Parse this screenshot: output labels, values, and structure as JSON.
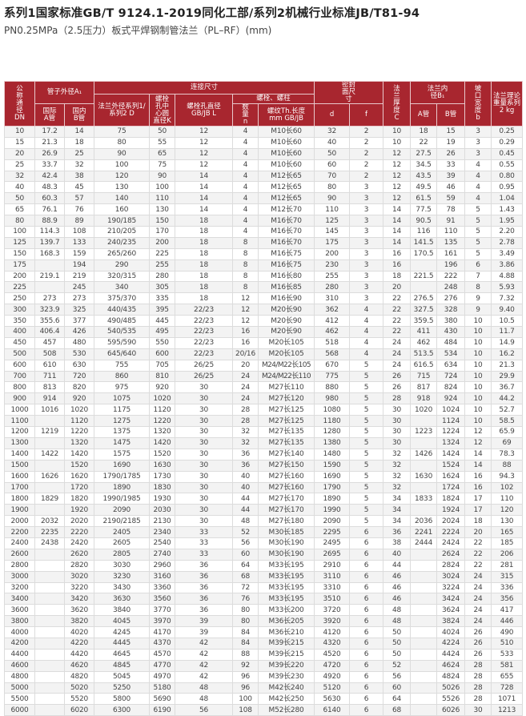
{
  "title": "系列1国家标准GB/T 9124.1-2019同化工部/系列2机械行业标准JB/T81-94",
  "subtitle": "PN0.25MPa（2.5压力）板式平焊钢制管法兰（PL–RF）(mm)",
  "colors": {
    "header_bg": "#a8262f",
    "header_text": "#ffffff",
    "row_alt": "#f3f3f3"
  },
  "header": {
    "dn": "公称通径DN",
    "pipe_od": "管子外径A₁",
    "pipe_a": "国际A管",
    "pipe_b": "国内B管",
    "connection": "连接尺寸",
    "flange_od": "法兰外径系列1/系列2 D",
    "bolt_circle": "螺栓孔中心圆直径K",
    "bolt_hole": "螺栓孔直径GB/JB L",
    "bolts": "螺栓、螺柱",
    "bolt_count": "数量n",
    "thread": "螺纹Th.长度mm GB/JB",
    "seal": "密封面尺寸",
    "seal_d": "d",
    "seal_f": "f",
    "thickness": "法兰厚度C",
    "bore": "法兰内径B₁",
    "bore_a": "A管",
    "bore_b": "B管",
    "bevel": "坡口宽度b",
    "weight": "法兰理论重量系列2 kg"
  },
  "rows": [
    [
      "10",
      "17.2",
      "14",
      "75",
      "50",
      "12",
      "4",
      "M10长60",
      "32",
      "2",
      "10",
      "18",
      "15",
      "3",
      "0.25"
    ],
    [
      "15",
      "21.3",
      "18",
      "80",
      "55",
      "12",
      "4",
      "M10长60",
      "40",
      "2",
      "10",
      "22",
      "19",
      "3",
      "0.29"
    ],
    [
      "20",
      "26.9",
      "25",
      "90",
      "65",
      "12",
      "4",
      "M10长60",
      "50",
      "2",
      "12",
      "27.5",
      "26",
      "3",
      "0.45"
    ],
    [
      "25",
      "33.7",
      "32",
      "100",
      "75",
      "12",
      "4",
      "M10长60",
      "60",
      "2",
      "12",
      "34.5",
      "33",
      "4",
      "0.55"
    ],
    [
      "32",
      "42.4",
      "38",
      "120",
      "90",
      "14",
      "4",
      "M12长65",
      "70",
      "2",
      "12",
      "43.5",
      "39",
      "4",
      "0.80"
    ],
    [
      "40",
      "48.3",
      "45",
      "130",
      "100",
      "14",
      "4",
      "M12长65",
      "80",
      "3",
      "12",
      "49.5",
      "46",
      "4",
      "0.95"
    ],
    [
      "50",
      "60.3",
      "57",
      "140",
      "110",
      "14",
      "4",
      "M12长65",
      "90",
      "3",
      "12",
      "61.5",
      "59",
      "4",
      "1.04"
    ],
    [
      "65",
      "76.1",
      "76",
      "160",
      "130",
      "14",
      "4",
      "M12长70",
      "110",
      "3",
      "14",
      "77.5",
      "78",
      "5",
      "1.43"
    ],
    [
      "80",
      "88.9",
      "89",
      "190/185",
      "150",
      "18",
      "4",
      "M16长70",
      "125",
      "3",
      "14",
      "90.5",
      "91",
      "5",
      "1.95"
    ],
    [
      "100",
      "114.3",
      "108",
      "210/205",
      "170",
      "18",
      "4",
      "M16长70",
      "145",
      "3",
      "14",
      "116",
      "110",
      "5",
      "2.20"
    ],
    [
      "125",
      "139.7",
      "133",
      "240/235",
      "200",
      "18",
      "8",
      "M16长70",
      "175",
      "3",
      "14",
      "141.5",
      "135",
      "5",
      "2.78"
    ],
    [
      "150",
      "168.3",
      "159",
      "265/260",
      "225",
      "18",
      "8",
      "M16长75",
      "200",
      "3",
      "16",
      "170.5",
      "161",
      "5",
      "3.49"
    ],
    [
      "175",
      "",
      "194",
      "290",
      "255",
      "18",
      "8",
      "M16长75",
      "230",
      "3",
      "16",
      "",
      "196",
      "6",
      "3.86"
    ],
    [
      "200",
      "219.1",
      "219",
      "320/315",
      "280",
      "18",
      "8",
      "M16长80",
      "255",
      "3",
      "18",
      "221.5",
      "222",
      "7",
      "4.88"
    ],
    [
      "225",
      "",
      "245",
      "340",
      "305",
      "18",
      "8",
      "M16长85",
      "280",
      "3",
      "20",
      "",
      "248",
      "8",
      "5.93"
    ],
    [
      "250",
      "273",
      "273",
      "375/370",
      "335",
      "18",
      "12",
      "M16长90",
      "310",
      "3",
      "22",
      "276.5",
      "276",
      "9",
      "7.32"
    ],
    [
      "300",
      "323.9",
      "325",
      "440/435",
      "395",
      "22/23",
      "12",
      "M20长90",
      "362",
      "4",
      "22",
      "327.5",
      "328",
      "9",
      "9.40"
    ],
    [
      "350",
      "355.6",
      "377",
      "490/485",
      "445",
      "22/23",
      "12",
      "M20长90",
      "412",
      "4",
      "22",
      "359.5",
      "380",
      "10",
      "10.5"
    ],
    [
      "400",
      "406.4",
      "426",
      "540/535",
      "495",
      "22/23",
      "16",
      "M20长90",
      "462",
      "4",
      "22",
      "411",
      "430",
      "10",
      "11.7"
    ],
    [
      "450",
      "457",
      "480",
      "595/590",
      "550",
      "22/23",
      "16",
      "M20长105",
      "518",
      "4",
      "24",
      "462",
      "484",
      "10",
      "14.9"
    ],
    [
      "500",
      "508",
      "530",
      "645/640",
      "600",
      "22/23",
      "20/16",
      "M20长105",
      "568",
      "4",
      "24",
      "513.5",
      "534",
      "10",
      "16.2"
    ],
    [
      "600",
      "610",
      "630",
      "755",
      "705",
      "26/25",
      "20",
      "M24/M22长105",
      "670",
      "5",
      "24",
      "616.5",
      "634",
      "10",
      "21.3"
    ],
    [
      "700",
      "711",
      "720",
      "860",
      "810",
      "26/25",
      "24",
      "M24/M22长110",
      "775",
      "5",
      "26",
      "715",
      "724",
      "10",
      "29.9"
    ],
    [
      "800",
      "813",
      "820",
      "975",
      "920",
      "30",
      "24",
      "M27长110",
      "880",
      "5",
      "26",
      "817",
      "824",
      "10",
      "36.7"
    ],
    [
      "900",
      "914",
      "920",
      "1075",
      "1020",
      "30",
      "24",
      "M27长120",
      "980",
      "5",
      "28",
      "918",
      "924",
      "10",
      "44.2"
    ],
    [
      "1000",
      "1016",
      "1020",
      "1175",
      "1120",
      "30",
      "28",
      "M27长125",
      "1080",
      "5",
      "30",
      "1020",
      "1024",
      "10",
      "52.7"
    ],
    [
      "1100",
      "",
      "1120",
      "1275",
      "1220",
      "30",
      "28",
      "M27长125",
      "1180",
      "5",
      "30",
      "",
      "1124",
      "10",
      "58.5"
    ],
    [
      "1200",
      "1219",
      "1220",
      "1375",
      "1320",
      "30",
      "32",
      "M27长135",
      "1280",
      "5",
      "30",
      "1223",
      "1224",
      "12",
      "65.9"
    ],
    [
      "1300",
      "",
      "1320",
      "1475",
      "1420",
      "30",
      "32",
      "M27长135",
      "1380",
      "5",
      "30",
      "",
      "1324",
      "12",
      "69"
    ],
    [
      "1400",
      "1422",
      "1420",
      "1575",
      "1520",
      "30",
      "36",
      "M27长140",
      "1480",
      "5",
      "32",
      "1426",
      "1424",
      "14",
      "78.3"
    ],
    [
      "1500",
      "",
      "1520",
      "1690",
      "1630",
      "30",
      "36",
      "M27长150",
      "1590",
      "5",
      "32",
      "",
      "1524",
      "14",
      "88"
    ],
    [
      "1600",
      "1626",
      "1620",
      "1790/1785",
      "1730",
      "30",
      "40",
      "M27长160",
      "1690",
      "5",
      "32",
      "1630",
      "1624",
      "16",
      "94.3"
    ],
    [
      "1700",
      "",
      "1720",
      "1890",
      "1830",
      "30",
      "40",
      "M27长160",
      "1790",
      "5",
      "32",
      "",
      "1724",
      "16",
      "102"
    ],
    [
      "1800",
      "1829",
      "1820",
      "1990/1985",
      "1930",
      "30",
      "44",
      "M27长170",
      "1890",
      "5",
      "34",
      "1833",
      "1824",
      "17",
      "110"
    ],
    [
      "1900",
      "",
      "1920",
      "2090",
      "2030",
      "30",
      "44",
      "M27长170",
      "1990",
      "5",
      "34",
      "",
      "1924",
      "17",
      "120"
    ],
    [
      "2000",
      "2032",
      "2020",
      "2190/2185",
      "2130",
      "30",
      "48",
      "M27长180",
      "2090",
      "5",
      "34",
      "2036",
      "2024",
      "18",
      "130"
    ],
    [
      "2200",
      "2235",
      "2220",
      "2405",
      "2340",
      "33",
      "52",
      "M30长185",
      "2295",
      "6",
      "36",
      "2241",
      "2224",
      "20",
      "165"
    ],
    [
      "2400",
      "2438",
      "2420",
      "2605",
      "2540",
      "33",
      "56",
      "M30长190",
      "2495",
      "6",
      "38",
      "2444",
      "2424",
      "22",
      "185"
    ],
    [
      "2600",
      "",
      "2620",
      "2805",
      "2740",
      "33",
      "60",
      "M30长190",
      "2695",
      "6",
      "40",
      "",
      "2624",
      "22",
      "206"
    ],
    [
      "2800",
      "",
      "2820",
      "3030",
      "2960",
      "36",
      "64",
      "M33长195",
      "2910",
      "6",
      "44",
      "",
      "2824",
      "22",
      "281"
    ],
    [
      "3000",
      "",
      "3020",
      "3230",
      "3160",
      "36",
      "68",
      "M33长195",
      "3110",
      "6",
      "46",
      "",
      "3024",
      "24",
      "315"
    ],
    [
      "3200",
      "",
      "3220",
      "3430",
      "3360",
      "36",
      "72",
      "M33长195",
      "3310",
      "6",
      "46",
      "",
      "3224",
      "24",
      "336"
    ],
    [
      "3400",
      "",
      "3420",
      "3630",
      "3560",
      "36",
      "76",
      "M33长195",
      "3510",
      "6",
      "46",
      "",
      "3424",
      "24",
      "356"
    ],
    [
      "3600",
      "",
      "3620",
      "3840",
      "3770",
      "36",
      "80",
      "M33长200",
      "3720",
      "6",
      "48",
      "",
      "3624",
      "24",
      "417"
    ],
    [
      "3800",
      "",
      "3820",
      "4045",
      "3970",
      "39",
      "80",
      "M36长205",
      "3920",
      "6",
      "48",
      "",
      "3824",
      "24",
      "446"
    ],
    [
      "4000",
      "",
      "4020",
      "4245",
      "4170",
      "39",
      "84",
      "M36长210",
      "4120",
      "6",
      "50",
      "",
      "4024",
      "26",
      "490"
    ],
    [
      "4200",
      "",
      "4220",
      "4445",
      "4370",
      "42",
      "84",
      "M39长215",
      "4320",
      "6",
      "50",
      "",
      "4224",
      "26",
      "510"
    ],
    [
      "4400",
      "",
      "4420",
      "4645",
      "4570",
      "42",
      "88",
      "M39长215",
      "4520",
      "6",
      "50",
      "",
      "4424",
      "26",
      "533"
    ],
    [
      "4600",
      "",
      "4620",
      "4845",
      "4770",
      "42",
      "92",
      "M39长220",
      "4720",
      "6",
      "52",
      "",
      "4624",
      "28",
      "581"
    ],
    [
      "4800",
      "",
      "4820",
      "5045",
      "4970",
      "42",
      "96",
      "M39长230",
      "4920",
      "6",
      "56",
      "",
      "4824",
      "28",
      "655"
    ],
    [
      "5000",
      "",
      "5020",
      "5250",
      "5180",
      "48",
      "96",
      "M42长240",
      "5120",
      "6",
      "60",
      "",
      "5026",
      "28",
      "728"
    ],
    [
      "5500",
      "",
      "5520",
      "5800",
      "5690",
      "48",
      "100",
      "M42长250",
      "5630",
      "6",
      "64",
      "",
      "5526",
      "28",
      "1071"
    ],
    [
      "6000",
      "",
      "6020",
      "6300",
      "6190",
      "56",
      "108",
      "M52长280",
      "6140",
      "6",
      "68",
      "",
      "6026",
      "30",
      "1213"
    ]
  ]
}
